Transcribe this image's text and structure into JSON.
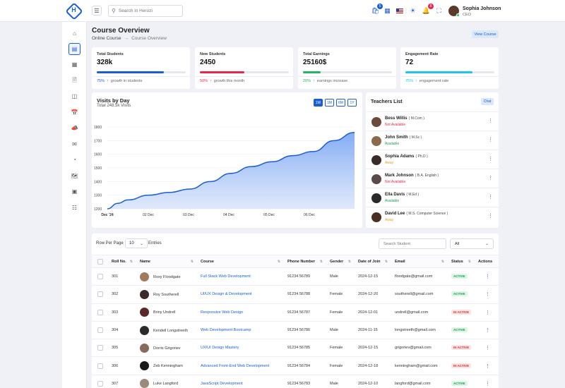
{
  "header": {
    "search_placeholder": "Search in Herozi",
    "cart_badge": "5",
    "notif_badge": "8",
    "user_name": "Sophia Johnson",
    "user_role": "CEO"
  },
  "page": {
    "title": "Course Overview",
    "breadcrumb_root": "Online Course",
    "breadcrumb_current": "Course Overview",
    "view_button": "View Course"
  },
  "stats": [
    {
      "label": "Total Students",
      "value": "328k",
      "pct": "75%",
      "note": "growth in students",
      "progress": 0.75,
      "color": "#1a5fd0",
      "trend": "up"
    },
    {
      "label": "New Students",
      "value": "2450",
      "pct": "50%",
      "note": "growth this month",
      "progress": 0.5,
      "color": "#e8264a",
      "trend": "up"
    },
    {
      "label": "Total Earnings",
      "value": "25160$",
      "pct": "20%",
      "note": "earnings increase",
      "progress": 0.2,
      "color": "#22b560",
      "trend": "up"
    },
    {
      "label": "Engagement Rate",
      "value": "72",
      "pct": "75%",
      "note": "engagement rate",
      "progress": 0.75,
      "color": "#1ec5e8",
      "trend": "up"
    }
  ],
  "visits": {
    "title": "Visits by Day",
    "subtitle": "Total 248.5k Visits",
    "ranges": [
      "1W",
      "1M",
      "6M",
      "1Y"
    ],
    "active_range": "1W"
  },
  "chart_data": {
    "type": "area",
    "x_ticks": [
      "Dec '24",
      "02 Dec",
      "03 Dec",
      "04 Dec",
      "05 Dec",
      "06 Dec"
    ],
    "y_ticks": [
      1200,
      1300,
      1400,
      1500,
      1600,
      1700,
      1800
    ],
    "ylim": [
      1200,
      1800
    ],
    "x": [
      0,
      0.25,
      0.5,
      1,
      1.5,
      2,
      2.5,
      3,
      3.5,
      4,
      4.5,
      5,
      5.5,
      6
    ],
    "values": [
      1200,
      1240,
      1265,
      1300,
      1320,
      1345,
      1400,
      1460,
      1510,
      1545,
      1590,
      1620,
      1700,
      1760
    ],
    "color": "#1a5fd0",
    "grid": true
  },
  "teachers": {
    "title": "Teachers List",
    "chat_label": "Chat",
    "items": [
      {
        "name": "Bess Willis",
        "degree": "( M.Com )",
        "status": "Not Available",
        "color": "#e8264a",
        "avatar": "#6b4a3a"
      },
      {
        "name": "John Smith",
        "degree": "( M.Sc )",
        "status": "Available",
        "color": "#22a050",
        "avatar": "#8a6a4a"
      },
      {
        "name": "Sophia Adams",
        "degree": "( Ph.D )",
        "status": "Away",
        "color": "#e8a020",
        "avatar": "#3a2a2a"
      },
      {
        "name": "Mark Johnson",
        "degree": "( B.A. English )",
        "status": "Not Available",
        "color": "#e8264a",
        "avatar": "#5a4a4a"
      },
      {
        "name": "Ella Davis",
        "degree": "( M.Ed )",
        "status": "Available",
        "color": "#22a050",
        "avatar": "#2a2a2a"
      },
      {
        "name": "David Lee",
        "degree": "( M.S. Computer Science )",
        "status": "Away",
        "color": "#e8a020",
        "avatar": "#4a3020"
      }
    ]
  },
  "table": {
    "rows_per_page_label": "Row Per Page",
    "rows_per_page_value": "10",
    "entries_label": "Entries",
    "search_placeholder": "Search Student",
    "filter_value": "All",
    "columns": [
      "Roll No.",
      "Name",
      "Course",
      "Phone Number",
      "Gender",
      "Date of Join",
      "Email",
      "Status",
      "Actions"
    ],
    "rows": [
      {
        "roll": "301",
        "name": "Roxy Floodgate",
        "course": "Full Stack Web Development",
        "phone": "91234 56789",
        "gender": "Male",
        "date": "2024-12-15",
        "email": "floodgate@gmail.com",
        "status": "ACTIVE",
        "avatar": "#a07a5a"
      },
      {
        "roll": "302",
        "name": "Roy Southerell",
        "course": "UI/UX Design & Development",
        "phone": "91234 56788",
        "gender": "Female",
        "date": "2024-12-20",
        "email": "southerell@gmail.com",
        "status": "ACTIVE",
        "avatar": "#3a2a2a"
      },
      {
        "roll": "303",
        "name": "Briny Undrell",
        "course": "Responsive Web Design",
        "phone": "91234 56787",
        "gender": "Female",
        "date": "2024-12-01",
        "email": "undrell@gmail.com",
        "status": "IN ACTIVE",
        "avatar": "#5a2a2a"
      },
      {
        "roll": "304",
        "name": "Kendell Longstreeth",
        "course": "Web Development Bootcamp",
        "phone": "91234 56786",
        "gender": "Male",
        "date": "2024-11-15",
        "email": "longstreeth@gmail.com",
        "status": "ACTIVE",
        "avatar": "#2a2a2a"
      },
      {
        "roll": "305",
        "name": "Dorris Grigoriev",
        "course": "UX/UI Design Mastery",
        "phone": "91234 56785",
        "gender": "Female",
        "date": "2024-12-15",
        "email": "grigoriev@gmail.com",
        "status": "IN ACTIVE",
        "avatar": "#8a6a5a"
      },
      {
        "roll": "306",
        "name": "Zeb Kenningham",
        "course": "Advanced Front-End Web Development",
        "phone": "91234 56784",
        "gender": "Female",
        "date": "2024-12-18",
        "email": "kenningham@gmail.com",
        "status": "IN ACTIVE",
        "avatar": "#1a1a1a"
      },
      {
        "roll": "307",
        "name": "Luke Langford",
        "course": "JavaScript Development",
        "phone": "91234 56783",
        "gender": "Male",
        "date": "2024-12-10",
        "email": "langford@gmail.com",
        "status": "ACTIVE",
        "avatar": "#9a8a7a"
      }
    ]
  }
}
